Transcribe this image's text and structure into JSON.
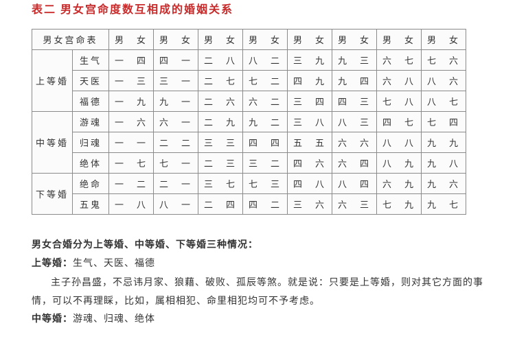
{
  "title_partial": "表二  男女宫命度数互相成的婚姻关系",
  "table": {
    "header_stub": "男女宫命表",
    "pair_header": "男　女",
    "groups": [
      {
        "name": "上等婚",
        "rows": [
          {
            "label": "生气",
            "cells": [
              "一　四",
              "四　一",
              "二　八",
              "八　二",
              "三　九",
              "九　三",
              "六　七",
              "七　六"
            ]
          },
          {
            "label": "天医",
            "cells": [
              "一　三",
              "三　一",
              "二　七",
              "七　二",
              "四　九",
              "九　四",
              "六　八",
              "八　六"
            ]
          },
          {
            "label": "福德",
            "cells": [
              "一　九",
              "九　一",
              "二　六",
              "六　二",
              "三　四",
              "四　三",
              "七　八",
              "八　七"
            ]
          }
        ]
      },
      {
        "name": "中等婚",
        "rows": [
          {
            "label": "游魂",
            "cells": [
              "一　六",
              "六　一",
              "二　九",
              "九　二",
              "三　八",
              "八　三",
              "四　七",
              "七　四"
            ]
          },
          {
            "label": "归魂",
            "cells": [
              "一　一",
              "二　二",
              "三　三",
              "四　四",
              "五　五",
              "六　六",
              "八　八",
              "九　九"
            ]
          },
          {
            "label": "绝体",
            "cells": [
              "一　七",
              "七　一",
              "二　三",
              "三　二",
              "四　六",
              "六　四",
              "八　九",
              "九　八"
            ]
          }
        ]
      },
      {
        "name": "下等婚",
        "rows": [
          {
            "label": "绝命",
            "cells": [
              "一　二",
              "二　一",
              "三　七",
              "七　三",
              "四　八",
              "八　四",
              "六　九",
              "九　六"
            ]
          },
          {
            "label": "五鬼",
            "cells": [
              "一　八",
              "八　一",
              "二　四",
              "四　二",
              "三　六",
              "六　三",
              "七　九",
              "九　七"
            ]
          }
        ]
      }
    ]
  },
  "body": {
    "heading": "男女合婚分为上等婚、中等婚、下等婚三种情况：",
    "line1_label": "上等婚：",
    "line1_rest": "生气、天医、福德",
    "para": "主子孙昌盛，不忌讳月家、狼藉、破败、孤辰等煞。就是说：只要是上等婚，则对其它方面的事情，可以不再理睬，比如，属相相犯、命里相犯均可不予考虑。",
    "line2_label": "中等婚：",
    "line2_rest": "游魂、归魂、绝体"
  }
}
